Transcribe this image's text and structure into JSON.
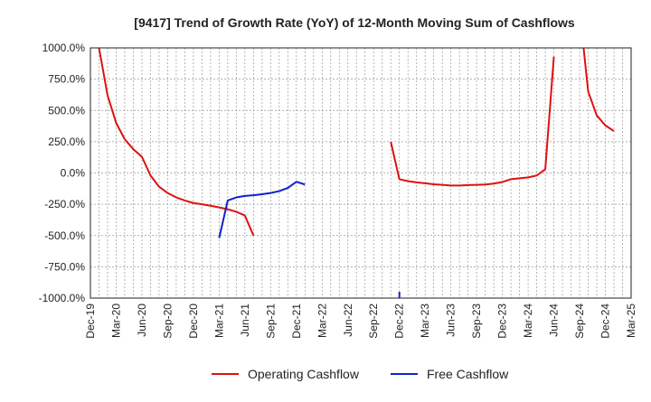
{
  "chart_data": {
    "type": "line",
    "title": "[9417]  Trend of Growth Rate (YoY) of 12-Month Moving Sum of Cashflows",
    "xlabel": "",
    "ylabel": "",
    "ylim": [
      -1000,
      1000
    ],
    "yticks": [
      1000,
      750,
      500,
      250,
      0,
      -250,
      -500,
      -750,
      -1000
    ],
    "ytick_labels": [
      "1000.0%",
      "750.0%",
      "500.0%",
      "250.0%",
      "0.0%",
      "-250.0%",
      "-500.0%",
      "-750.0%",
      "-1000.0%"
    ],
    "xlim": [
      "2019-12",
      "2025-03"
    ],
    "xtick_labels": [
      "Dec-19",
      "Mar-20",
      "Jun-20",
      "Sep-20",
      "Dec-20",
      "Mar-21",
      "Jun-21",
      "Sep-21",
      "Dec-21",
      "Mar-22",
      "Jun-22",
      "Sep-22",
      "Dec-22",
      "Mar-23",
      "Jun-23",
      "Sep-23",
      "Dec-23",
      "Mar-24",
      "Jun-24",
      "Sep-24",
      "Dec-24",
      "Mar-25"
    ],
    "grid": true,
    "legend_position": "bottom",
    "series": [
      {
        "name": "Operating Cashflow",
        "color": "#dd1111",
        "points": [
          [
            "2019-12",
            1300
          ],
          [
            "2020-01",
            1000
          ],
          [
            "2020-02",
            620
          ],
          [
            "2020-03",
            400
          ],
          [
            "2020-04",
            270
          ],
          [
            "2020-05",
            190
          ],
          [
            "2020-06",
            130
          ],
          [
            "2020-07",
            -20
          ],
          [
            "2020-08",
            -110
          ],
          [
            "2020-09",
            -160
          ],
          [
            "2020-10",
            -195
          ],
          [
            "2020-11",
            -220
          ],
          [
            "2020-12",
            -240
          ],
          [
            "2021-01",
            -250
          ],
          [
            "2021-02",
            -262
          ],
          [
            "2021-03",
            -275
          ],
          [
            "2021-04",
            -290
          ],
          [
            "2021-05",
            -310
          ],
          [
            "2021-06",
            -340
          ],
          [
            "2021-07",
            -500
          ],
          null,
          [
            "2022-11",
            250
          ],
          [
            "2022-12",
            -50
          ],
          [
            "2023-01",
            -65
          ],
          [
            "2023-02",
            -75
          ],
          [
            "2023-03",
            -82
          ],
          [
            "2023-04",
            -90
          ],
          [
            "2023-05",
            -95
          ],
          [
            "2023-06",
            -100
          ],
          [
            "2023-07",
            -100
          ],
          [
            "2023-08",
            -97
          ],
          [
            "2023-09",
            -95
          ],
          [
            "2023-10",
            -92
          ],
          [
            "2023-11",
            -85
          ],
          [
            "2023-12",
            -72
          ],
          [
            "2024-01",
            -50
          ],
          [
            "2024-02",
            -42
          ],
          [
            "2024-03",
            -35
          ],
          [
            "2024-04",
            -20
          ],
          [
            "2024-05",
            30
          ],
          [
            "2024-06",
            930
          ],
          null,
          [
            "2024-09",
            1300
          ],
          [
            "2024-10",
            650
          ],
          [
            "2024-11",
            460
          ],
          [
            "2024-12",
            380
          ],
          [
            "2025-01",
            335
          ]
        ]
      },
      {
        "name": "Free Cashflow",
        "color": "#1122cc",
        "points": [
          [
            "2021-03",
            -520
          ],
          [
            "2021-04",
            -220
          ],
          [
            "2021-05",
            -195
          ],
          [
            "2021-06",
            -183
          ],
          [
            "2021-07",
            -178
          ],
          [
            "2021-08",
            -170
          ],
          [
            "2021-09",
            -160
          ],
          [
            "2021-10",
            -145
          ],
          [
            "2021-11",
            -120
          ],
          [
            "2021-12",
            -70
          ],
          [
            "2022-01",
            -92
          ],
          null,
          [
            "2022-12",
            -950
          ],
          [
            "2022-12",
            -1100
          ]
        ]
      }
    ]
  }
}
